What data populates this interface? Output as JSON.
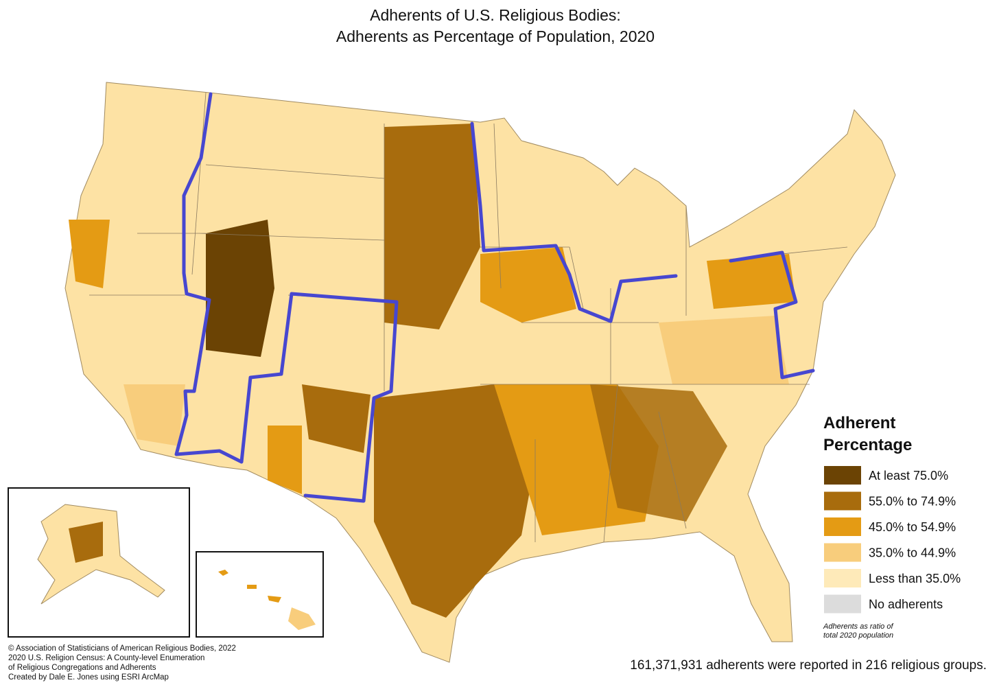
{
  "title": [
    "Adherents of U.S. Religious Bodies:",
    "Adherents as Percentage of Population, 2020"
  ],
  "legend": {
    "title": [
      "Adherent",
      "Percentage"
    ],
    "items": [
      {
        "label": "At least 75.0%",
        "color": "#6b4304"
      },
      {
        "label": "55.0% to 74.9%",
        "color": "#a86c0d"
      },
      {
        "label": "45.0% to 54.9%",
        "color": "#e49b14"
      },
      {
        "label": "35.0% to 44.9%",
        "color": "#f8cd7c"
      },
      {
        "label": "Less than 35.0%",
        "color": "#feeab9"
      },
      {
        "label": "No adherents",
        "color": "#dcdcdc"
      }
    ],
    "note": [
      "Adherents as ratio of",
      "total 2020 population"
    ]
  },
  "credits": [
    "© Association of Statisticians of American Religious Bodies, 2022",
    "2020 U.S. Religion Census: A County-level Enumeration",
    "of Religious Congregations and Adherents",
    "Created by Dale E. Jones using ESRI ArcMap"
  ],
  "summary": "161,371,931 adherents were reported in 216 religious groups."
}
